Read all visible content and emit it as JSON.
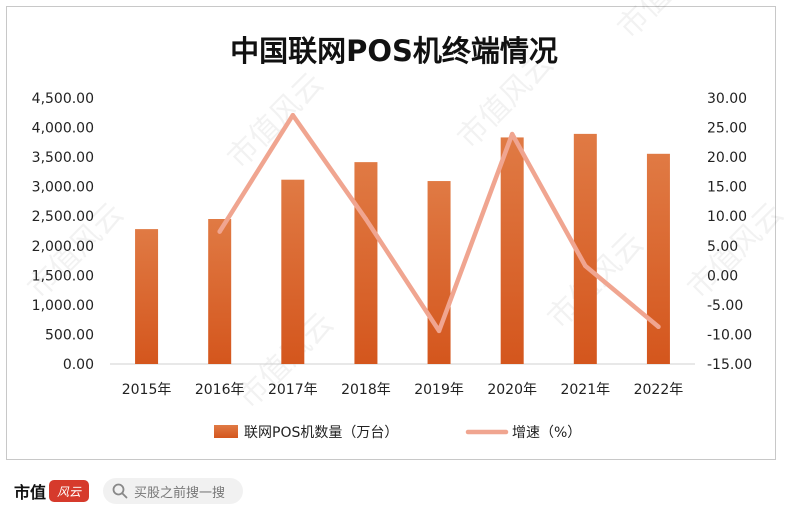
{
  "chart_data": {
    "type": "bar",
    "title": "中国联网POS机终端情况",
    "categories": [
      "2015年",
      "2016年",
      "2017年",
      "2018年",
      "2019年",
      "2020年",
      "2021年",
      "2022年"
    ],
    "series": [
      {
        "name": "联网POS机数量（万台）",
        "type": "bar",
        "axis": "left",
        "color": "#d9622b",
        "values": [
          2282,
          2453,
          3118,
          3415,
          3095,
          3833,
          3893,
          3556
        ]
      },
      {
        "name": "增速（%）",
        "type": "line",
        "axis": "right",
        "color": "#f0a590",
        "values": [
          null,
          7.4,
          27.1,
          9.5,
          -9.4,
          23.9,
          1.6,
          -8.7
        ]
      }
    ],
    "y_left": {
      "min": 0,
      "max": 4500,
      "step": 500,
      "tick_labels": [
        "0.00",
        "500.00",
        "1,000.00",
        "1,500.00",
        "2,000.00",
        "2,500.00",
        "3,000.00",
        "3,500.00",
        "4,000.00",
        "4,500.00"
      ]
    },
    "y_right": {
      "min": -15,
      "max": 30,
      "step": 5,
      "tick_labels": [
        "-15.00",
        "-10.00",
        "-5.00",
        "0.00",
        "5.00",
        "10.00",
        "15.00",
        "20.00",
        "25.00",
        "30.00"
      ]
    },
    "grid": false,
    "legend_position": "bottom"
  },
  "watermark": "市值风云",
  "footer": {
    "brand": "市值",
    "brand_mark": "风云",
    "search_placeholder": "买股之前搜一搜",
    "search_icon": "search-icon"
  }
}
